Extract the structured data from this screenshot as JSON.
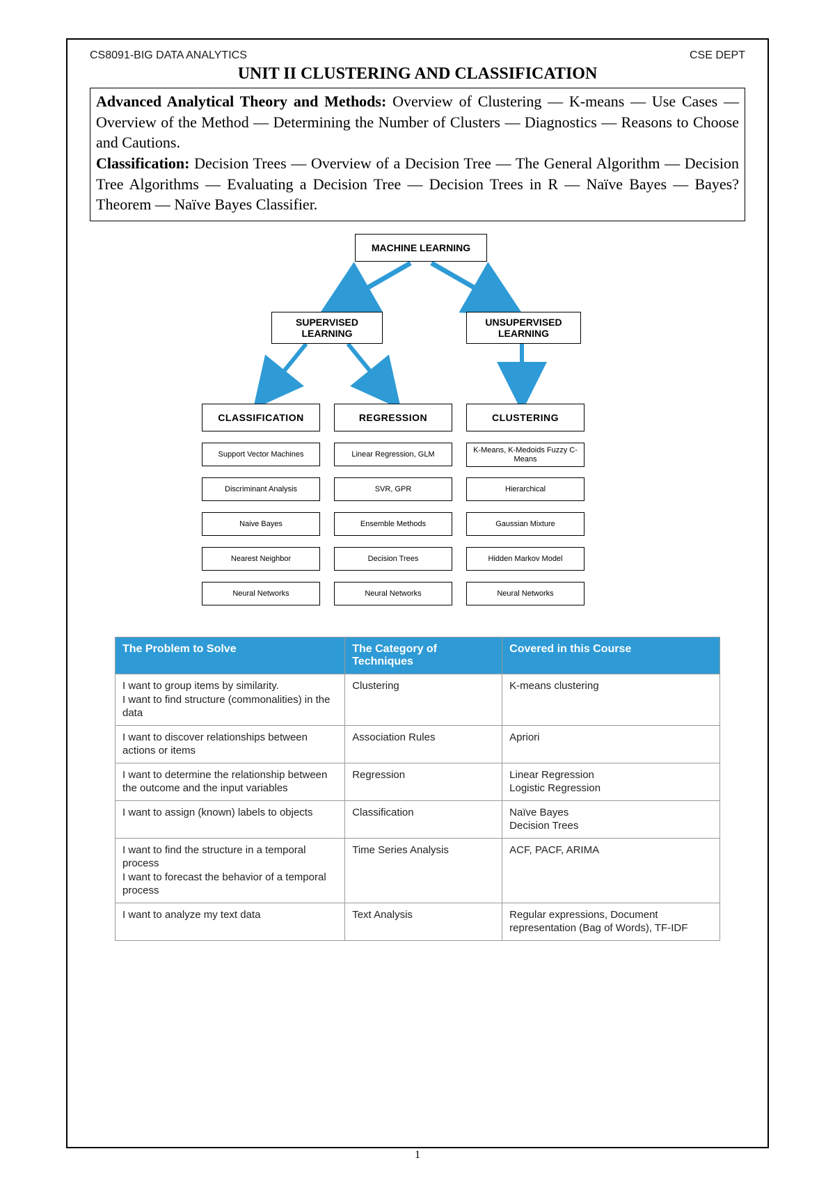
{
  "header": {
    "course_code": "CS8091-BIG DATA ANALYTICS",
    "dept": "CSE DEPT",
    "unit_title": "UNIT II CLUSTERING AND CLASSIFICATION"
  },
  "syllabus": {
    "part1_lead": "Advanced Analytical Theory and Methods:",
    "part1_text": " Overview of Clustering — K-means — Use Cases — Overview of the Method — Determining the Number of Clusters — Diagnostics — Reasons to Choose and Cautions.",
    "part2_lead": "Classification:",
    "part2_text": " Decision Trees — Overview of a Decision Tree — The General Algorithm — Decision Tree Algorithms — Evaluating a Decision Tree — Decision Trees in R — Naïve Bayes — Bayes? Theorem — Naïve Bayes Classifier."
  },
  "diagram": {
    "root": "MACHINE LEARNING",
    "branches": {
      "supervised": "SUPERVISED LEARNING",
      "unsupervised": "UNSUPERVISED LEARNING",
      "classification": "CLASSIFICATION",
      "regression": "REGRESSION",
      "clustering": "CLUSTERING"
    },
    "methods": {
      "classification": [
        "Support Vector Machines",
        "Discriminant Analysis",
        "Naive Bayes",
        "Nearest Neighbor",
        "Neural Networks"
      ],
      "regression": [
        "Linear Regression, GLM",
        "SVR, GPR",
        "Ensemble Methods",
        "Decision Trees",
        "Neural Networks"
      ],
      "clustering": [
        "K-Means, K-Medoids Fuzzy C-Means",
        "Hierarchical",
        "Gaussian Mixture",
        "Hidden Markov Model",
        "Neural Networks"
      ]
    },
    "arrow_color": "#2e9bd6",
    "box_border": "#000000",
    "background": "#ffffff"
  },
  "table": {
    "header_bg": "#2e9bd6",
    "header_fg": "#ffffff",
    "columns": [
      "The Problem to Solve",
      "The Category of Techniques",
      "Covered in this Course"
    ],
    "rows": [
      [
        "I want to group items by similarity. I want to find structure (commonalities) in the data",
        "Clustering",
        "K-means clustering"
      ],
      [
        "I want to discover relationships between actions or items",
        "Association Rules",
        "Apriori"
      ],
      [
        "I want to determine the relationship between the outcome and the input variables",
        "Regression",
        "Linear Regression Logistic Regression"
      ],
      [
        "I want to assign (known) labels to objects",
        "Classification",
        "Naïve Bayes Decision Trees"
      ],
      [
        "I want to find the structure in a temporal process I want to forecast the behavior of a temporal process",
        "Time Series Analysis",
        "ACF, PACF, ARIMA"
      ],
      [
        "I want to analyze my text data",
        "Text Analysis",
        "Regular expressions, Document representation (Bag of Words), TF-IDF"
      ]
    ],
    "col_widths": [
      "38%",
      "26%",
      "36%"
    ]
  },
  "page_number": "1"
}
